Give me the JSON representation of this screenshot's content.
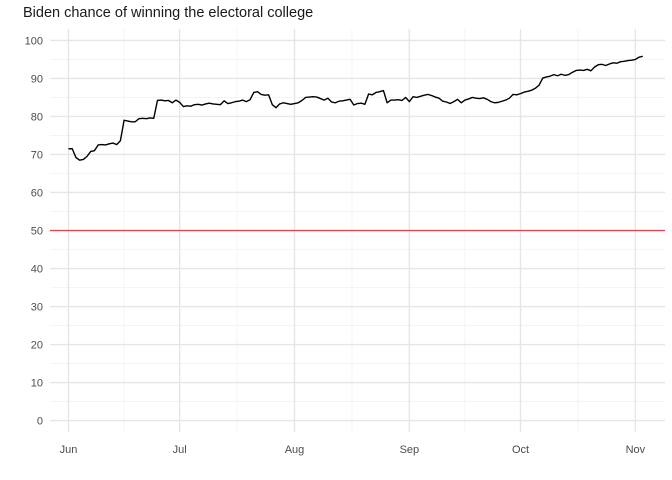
{
  "chart_data": {
    "type": "line",
    "title": "Biden chance of winning the electoral college",
    "xlabel": "",
    "ylabel": "",
    "x_type": "date",
    "xlim": [
      "2020-05-27",
      "2020-11-09"
    ],
    "ylim": [
      -3,
      103
    ],
    "y_ticks": [
      0,
      10,
      20,
      30,
      40,
      50,
      60,
      70,
      80,
      90,
      100
    ],
    "x_ticks": [
      {
        "date": "2020-06-01",
        "label": "Jun"
      },
      {
        "date": "2020-07-01",
        "label": "Jul"
      },
      {
        "date": "2020-08-01",
        "label": "Aug"
      },
      {
        "date": "2020-09-01",
        "label": "Sep"
      },
      {
        "date": "2020-10-01",
        "label": "Oct"
      },
      {
        "date": "2020-11-01",
        "label": "Nov"
      }
    ],
    "grid": true,
    "reference_line": {
      "y": 50,
      "color": "#e0464b"
    },
    "series": [
      {
        "color": "#000000",
        "points": [
          [
            "2020-06-01",
            71.5
          ],
          [
            "2020-06-02",
            71.5
          ],
          [
            "2020-06-03",
            69.2
          ],
          [
            "2020-06-04",
            68.5
          ],
          [
            "2020-06-05",
            68.7
          ],
          [
            "2020-06-06",
            69.5
          ],
          [
            "2020-06-07",
            70.8
          ],
          [
            "2020-06-08",
            71.0
          ],
          [
            "2020-06-09",
            72.5
          ],
          [
            "2020-06-10",
            72.6
          ],
          [
            "2020-06-11",
            72.5
          ],
          [
            "2020-06-12",
            72.8
          ],
          [
            "2020-06-13",
            73.0
          ],
          [
            "2020-06-14",
            72.6
          ],
          [
            "2020-06-15",
            73.6
          ],
          [
            "2020-06-16",
            79.0
          ],
          [
            "2020-06-17",
            78.8
          ],
          [
            "2020-06-18",
            78.6
          ],
          [
            "2020-06-19",
            78.6
          ],
          [
            "2020-06-20",
            79.4
          ],
          [
            "2020-06-21",
            79.5
          ],
          [
            "2020-06-22",
            79.4
          ],
          [
            "2020-06-23",
            79.6
          ],
          [
            "2020-06-24",
            79.5
          ],
          [
            "2020-06-25",
            84.2
          ],
          [
            "2020-06-26",
            84.3
          ],
          [
            "2020-06-27",
            84.1
          ],
          [
            "2020-06-28",
            84.2
          ],
          [
            "2020-06-29",
            83.6
          ],
          [
            "2020-06-30",
            84.3
          ],
          [
            "2020-07-01",
            83.7
          ],
          [
            "2020-07-02",
            82.6
          ],
          [
            "2020-07-03",
            82.8
          ],
          [
            "2020-07-04",
            82.7
          ],
          [
            "2020-07-05",
            83.1
          ],
          [
            "2020-07-06",
            83.2
          ],
          [
            "2020-07-07",
            83.0
          ],
          [
            "2020-07-08",
            83.3
          ],
          [
            "2020-07-09",
            83.5
          ],
          [
            "2020-07-10",
            83.3
          ],
          [
            "2020-07-11",
            83.2
          ],
          [
            "2020-07-12",
            83.1
          ],
          [
            "2020-07-13",
            84.1
          ],
          [
            "2020-07-14",
            83.4
          ],
          [
            "2020-07-15",
            83.6
          ],
          [
            "2020-07-16",
            83.9
          ],
          [
            "2020-07-17",
            84.0
          ],
          [
            "2020-07-18",
            84.3
          ],
          [
            "2020-07-19",
            83.9
          ],
          [
            "2020-07-20",
            84.4
          ],
          [
            "2020-07-21",
            86.3
          ],
          [
            "2020-07-22",
            86.5
          ],
          [
            "2020-07-23",
            85.8
          ],
          [
            "2020-07-24",
            85.6
          ],
          [
            "2020-07-25",
            85.7
          ],
          [
            "2020-07-26",
            83.1
          ],
          [
            "2020-07-27",
            82.3
          ],
          [
            "2020-07-28",
            83.3
          ],
          [
            "2020-07-29",
            83.6
          ],
          [
            "2020-07-30",
            83.4
          ],
          [
            "2020-07-31",
            83.2
          ],
          [
            "2020-08-01",
            83.4
          ],
          [
            "2020-08-02",
            83.6
          ],
          [
            "2020-08-03",
            84.2
          ],
          [
            "2020-08-04",
            85.0
          ],
          [
            "2020-08-05",
            85.1
          ],
          [
            "2020-08-06",
            85.2
          ],
          [
            "2020-08-07",
            85.1
          ],
          [
            "2020-08-08",
            84.7
          ],
          [
            "2020-08-09",
            84.3
          ],
          [
            "2020-08-10",
            84.8
          ],
          [
            "2020-08-11",
            83.8
          ],
          [
            "2020-08-12",
            83.6
          ],
          [
            "2020-08-13",
            84.0
          ],
          [
            "2020-08-14",
            84.1
          ],
          [
            "2020-08-15",
            84.3
          ],
          [
            "2020-08-16",
            84.5
          ],
          [
            "2020-08-17",
            83.0
          ],
          [
            "2020-08-18",
            83.4
          ],
          [
            "2020-08-19",
            83.5
          ],
          [
            "2020-08-20",
            83.2
          ],
          [
            "2020-08-21",
            85.9
          ],
          [
            "2020-08-22",
            85.7
          ],
          [
            "2020-08-23",
            86.3
          ],
          [
            "2020-08-24",
            86.5
          ],
          [
            "2020-08-25",
            86.8
          ],
          [
            "2020-08-26",
            83.6
          ],
          [
            "2020-08-27",
            84.3
          ],
          [
            "2020-08-28",
            84.3
          ],
          [
            "2020-08-29",
            84.4
          ],
          [
            "2020-08-30",
            84.2
          ],
          [
            "2020-08-31",
            85.0
          ],
          [
            "2020-09-01",
            83.9
          ],
          [
            "2020-09-02",
            85.2
          ],
          [
            "2020-09-03",
            85.0
          ],
          [
            "2020-09-04",
            85.3
          ],
          [
            "2020-09-05",
            85.6
          ],
          [
            "2020-09-06",
            85.8
          ],
          [
            "2020-09-07",
            85.5
          ],
          [
            "2020-09-08",
            85.1
          ],
          [
            "2020-09-09",
            84.8
          ],
          [
            "2020-09-10",
            84.0
          ],
          [
            "2020-09-11",
            83.8
          ],
          [
            "2020-09-12",
            83.4
          ],
          [
            "2020-09-13",
            83.9
          ],
          [
            "2020-09-14",
            84.5
          ],
          [
            "2020-09-15",
            83.6
          ],
          [
            "2020-09-16",
            84.3
          ],
          [
            "2020-09-17",
            84.6
          ],
          [
            "2020-09-18",
            85.0
          ],
          [
            "2020-09-19",
            84.8
          ],
          [
            "2020-09-20",
            84.7
          ],
          [
            "2020-09-21",
            84.9
          ],
          [
            "2020-09-22",
            84.5
          ],
          [
            "2020-09-23",
            83.9
          ],
          [
            "2020-09-24",
            83.6
          ],
          [
            "2020-09-25",
            83.7
          ],
          [
            "2020-09-26",
            84.0
          ],
          [
            "2020-09-27",
            84.3
          ],
          [
            "2020-09-28",
            84.8
          ],
          [
            "2020-09-29",
            85.8
          ],
          [
            "2020-09-30",
            85.7
          ],
          [
            "2020-10-01",
            86.0
          ],
          [
            "2020-10-02",
            86.4
          ],
          [
            "2020-10-03",
            86.6
          ],
          [
            "2020-10-04",
            86.9
          ],
          [
            "2020-10-05",
            87.4
          ],
          [
            "2020-10-06",
            88.2
          ],
          [
            "2020-10-07",
            90.1
          ],
          [
            "2020-10-08",
            90.4
          ],
          [
            "2020-10-09",
            90.6
          ],
          [
            "2020-10-10",
            91.0
          ],
          [
            "2020-10-11",
            90.7
          ],
          [
            "2020-10-12",
            91.1
          ],
          [
            "2020-10-13",
            90.8
          ],
          [
            "2020-10-14",
            91.0
          ],
          [
            "2020-10-15",
            91.6
          ],
          [
            "2020-10-16",
            92.1
          ],
          [
            "2020-10-17",
            92.2
          ],
          [
            "2020-10-18",
            92.1
          ],
          [
            "2020-10-19",
            92.4
          ],
          [
            "2020-10-20",
            92.0
          ],
          [
            "2020-10-21",
            93.0
          ],
          [
            "2020-10-22",
            93.6
          ],
          [
            "2020-10-23",
            93.7
          ],
          [
            "2020-10-24",
            93.4
          ],
          [
            "2020-10-25",
            93.8
          ],
          [
            "2020-10-26",
            94.1
          ],
          [
            "2020-10-27",
            94.0
          ],
          [
            "2020-10-28",
            94.4
          ],
          [
            "2020-10-29",
            94.5
          ],
          [
            "2020-10-30",
            94.7
          ],
          [
            "2020-10-31",
            94.8
          ],
          [
            "2020-11-01",
            95.0
          ],
          [
            "2020-11-02",
            95.6
          ],
          [
            "2020-11-03",
            95.8
          ]
        ]
      }
    ]
  }
}
